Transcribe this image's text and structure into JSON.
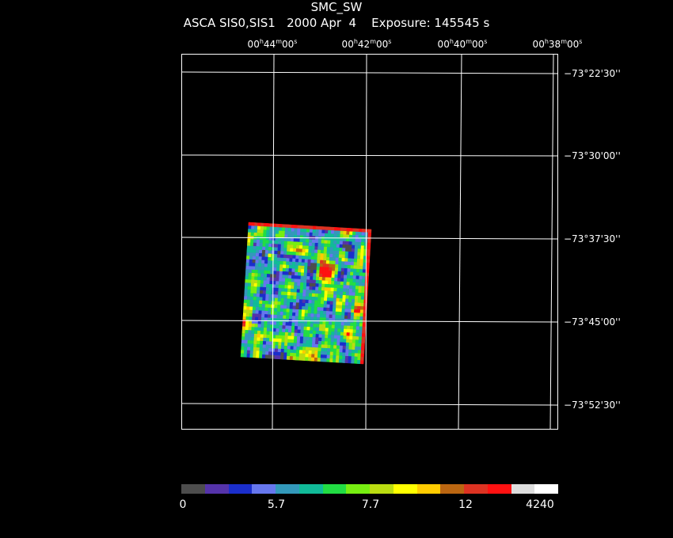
{
  "header": {
    "title": "SMC_SW",
    "subtitle": "ASCA SIS0,SIS1   2000 Apr  4    Exposure: 145545 s"
  },
  "axes": {
    "ra_labels": [
      {
        "h": "00",
        "m": "44",
        "s": "00"
      },
      {
        "h": "00",
        "m": "42",
        "s": "00"
      },
      {
        "h": "00",
        "m": "40",
        "s": "00"
      },
      {
        "h": "00",
        "m": "38",
        "s": "00"
      }
    ],
    "dec_labels": [
      "−73°22'30''",
      "−73°30'00''",
      "−73°37'30''",
      "−73°45'00''",
      "−73°52'30''"
    ]
  },
  "colorbar": {
    "colors": [
      "#4d4d4d",
      "#5533aa",
      "#1a2ecc",
      "#6677ee",
      "#3399bb",
      "#11bb99",
      "#22dd44",
      "#77ee11",
      "#bbdd11",
      "#ffff00",
      "#ffcc00",
      "#bb6611",
      "#dd3322",
      "#ff1111",
      "#dddddd",
      "#ffffff"
    ],
    "tick_labels": [
      "0",
      "5.7",
      "7.7",
      "12",
      "4240"
    ]
  }
}
